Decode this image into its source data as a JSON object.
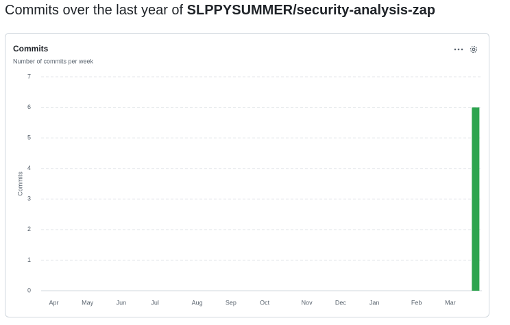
{
  "header": {
    "lead": "Commits over the last year of",
    "repo": "SLPPYSUMMER/security-analysis-zap"
  },
  "chart_data": {
    "type": "bar",
    "title": "Commits",
    "subtitle": "Number of commits per week",
    "y_label": "Commits",
    "categories": [
      null,
      "Apr",
      null,
      null,
      null,
      "May",
      null,
      null,
      null,
      "Jun",
      null,
      null,
      null,
      "Jul",
      null,
      null,
      null,
      null,
      "Aug",
      null,
      null,
      null,
      "Sep",
      null,
      null,
      null,
      "Oct",
      null,
      null,
      null,
      null,
      "Nov",
      null,
      null,
      null,
      "Dec",
      null,
      null,
      null,
      "Jan",
      null,
      null,
      null,
      null,
      "Feb",
      null,
      null,
      null,
      "Mar",
      null,
      null,
      null
    ],
    "values": [
      0,
      0,
      0,
      0,
      0,
      0,
      0,
      0,
      0,
      0,
      0,
      0,
      0,
      0,
      0,
      0,
      0,
      0,
      0,
      0,
      0,
      0,
      0,
      0,
      0,
      0,
      0,
      0,
      0,
      0,
      0,
      0,
      0,
      0,
      0,
      0,
      0,
      0,
      0,
      0,
      0,
      0,
      0,
      0,
      0,
      0,
      0,
      0,
      0,
      0,
      0,
      6
    ],
    "color": "#2da44e",
    "ylim": [
      0,
      7
    ],
    "yticks": [
      0,
      1,
      2,
      3,
      4,
      5,
      6,
      7
    ],
    "grid": true
  }
}
